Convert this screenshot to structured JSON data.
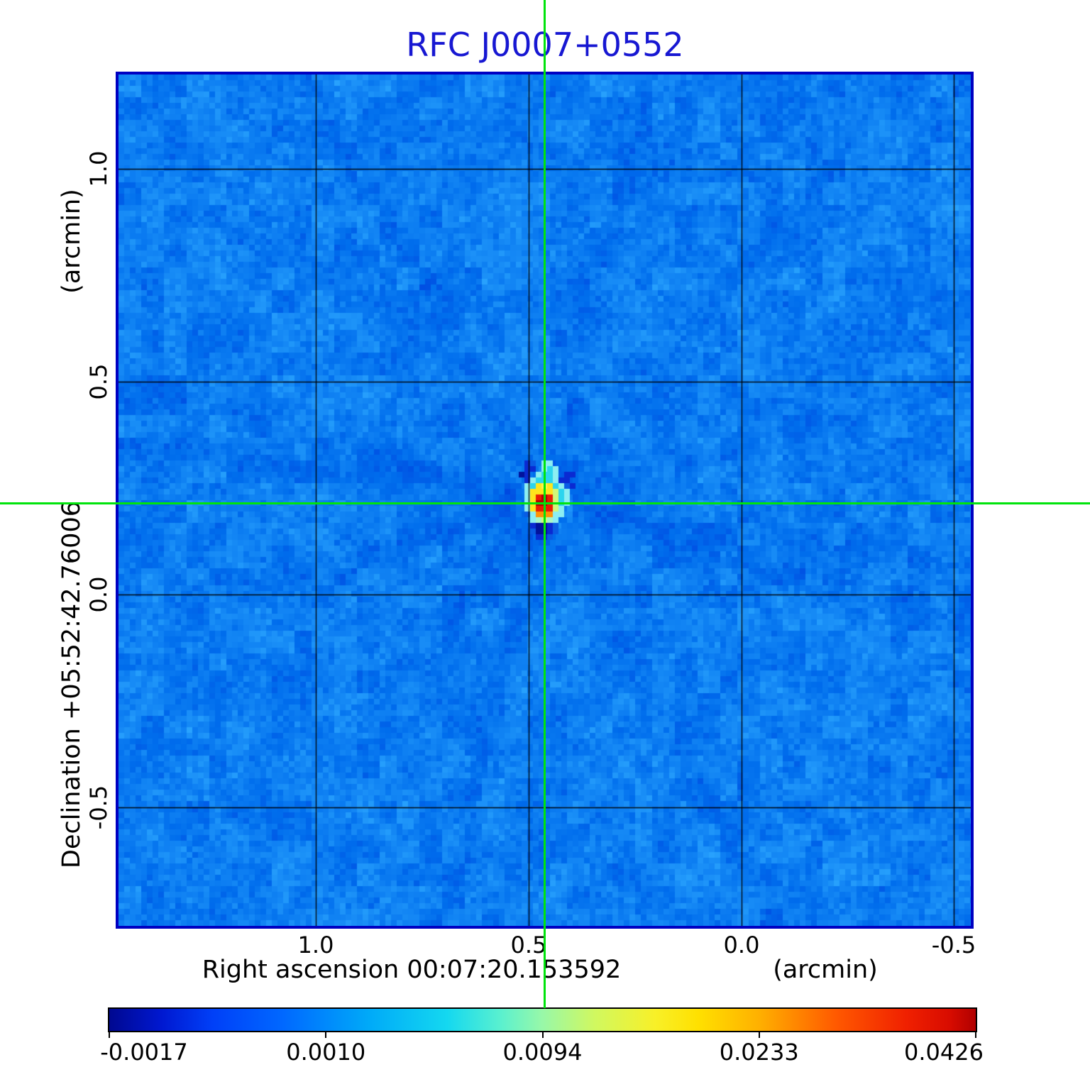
{
  "figure": {
    "title": "RFC J0007+0552",
    "title_color": "#1717d2",
    "plot_border_color": "#0000c2",
    "grid_color": "#000000",
    "background_color": "#ffffff"
  },
  "y_axis": {
    "unit_label": "(arcmin)",
    "axis_label": "Declination  +05:52:42.76006",
    "tick_labels": [
      "1.0",
      "0.5",
      "0.0",
      "-0.5"
    ]
  },
  "x_axis": {
    "axis_label": "Right ascension  00:07:20.153592",
    "unit_label": "(arcmin)",
    "tick_labels": [
      "1.0",
      "0.5",
      "0.0",
      "-0.5"
    ]
  },
  "colorbar": {
    "tick_labels": [
      "-0.0017",
      "0.0010",
      "0.0094",
      "0.0233",
      "0.0426"
    ],
    "gradient_stops": [
      [
        0.0,
        "#000890"
      ],
      [
        0.06,
        "#0018d0"
      ],
      [
        0.12,
        "#0040f8"
      ],
      [
        0.2,
        "#0068ff"
      ],
      [
        0.3,
        "#00aaf8"
      ],
      [
        0.39,
        "#14d8f0"
      ],
      [
        0.45,
        "#58f0d0"
      ],
      [
        0.5,
        "#98f8a8"
      ],
      [
        0.56,
        "#d0f860"
      ],
      [
        0.63,
        "#f8f028"
      ],
      [
        0.68,
        "#ffe000"
      ],
      [
        0.75,
        "#ffb000"
      ],
      [
        0.84,
        "#ff5800"
      ],
      [
        0.92,
        "#f02000"
      ],
      [
        0.97,
        "#d80c00"
      ],
      [
        1.0,
        "#b00000"
      ]
    ]
  },
  "crosshair": {
    "color": "#00e40c"
  },
  "image": {
    "background_blue": "#0d7ef2",
    "source_palette": {
      "b": "#0a5ce4",
      "B": "#0a2ad2",
      "N": "#02129b",
      "c": "#8ceef2",
      "C": "#2cd4ee",
      "a": "#a8f6c8",
      "g": "#d2f87a",
      "y": "#ffe51c",
      "Y": "#fff34c",
      "o": "#ff9404",
      "r": "#e81c04",
      "R": "#b40000"
    },
    "source_pattern": [
      "...Bb.cc.....",
      "...BB.cCc....",
      "..NB.cCCc.BB.",
      "...BcCCCcBB..",
      "...cCyYyCcbB.",
      "...cyyyygCc..",
      "...cyrRrgCc..",
      "...cyRRrgCc..",
      "...cyrrrgc...",
      "...bcooocc...",
      "....cagac....",
      "....BNNBb....",
      "....bNNBb....",
      ".....BBb.....",
      "......b......"
    ]
  },
  "chart_data": {
    "type": "heatmap",
    "title": "RFC J0007+0552",
    "xlabel": "Right ascension 00:07:20.153592 (arcmin)",
    "ylabel": "Declination +05:52:42.76006 (arcmin)",
    "x_tick_values": [
      1.0,
      0.5,
      0.0,
      -0.5
    ],
    "y_tick_values": [
      1.0,
      0.5,
      0.0,
      -0.5
    ],
    "x_range_arcmin": [
      1.46,
      -0.54
    ],
    "y_range_arcmin": [
      1.22,
      -0.78
    ],
    "grid": true,
    "colorbar_tick_values": [
      -0.0017,
      0.001,
      0.0094,
      0.0233,
      0.0426
    ],
    "colorbar_range": [
      -0.0017,
      0.0426
    ],
    "scale": "nonlinear",
    "peak_value": 0.0426,
    "background_level_approx": 0.0,
    "source_position_arcmin": {
      "x": 0.46,
      "y": 0.21
    },
    "legend_position": "bottom-colorbar"
  }
}
